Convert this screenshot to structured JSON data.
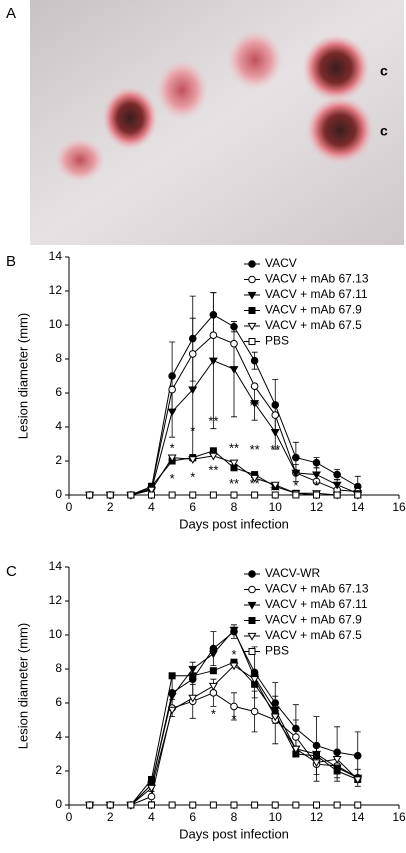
{
  "panel_labels": [
    "A",
    "B",
    "C"
  ],
  "photo_labels": [
    "c",
    "c"
  ],
  "chart_data": [
    {
      "type": "line",
      "xlabel": "Days post infection",
      "ylabel": "Lesion diameter (mm)",
      "x": [
        1,
        2,
        3,
        4,
        5,
        6,
        7,
        8,
        9,
        10,
        11,
        12,
        13,
        14
      ],
      "xlim": [
        0,
        16
      ],
      "xticks": [
        0,
        2,
        4,
        6,
        8,
        10,
        12,
        14,
        16
      ],
      "ylim": [
        0,
        14
      ],
      "yticks": [
        0,
        2,
        4,
        6,
        8,
        10,
        12,
        14
      ],
      "legend": "upper right",
      "series": [
        {
          "name": "VACV",
          "color": "#000",
          "marker": "circle",
          "filled": true,
          "values": [
            0,
            0,
            0,
            0.4,
            7.0,
            9.2,
            10.6,
            9.9,
            7.9,
            5.3,
            2.2,
            1.9,
            1.2,
            0.5
          ],
          "errors": [
            0,
            0,
            0,
            0.3,
            2.0,
            2.5,
            1.3,
            0.3,
            0.5,
            1.5,
            0.9,
            0.3,
            0.3,
            0.6
          ]
        },
        {
          "name": "VACV + mAb 67.13",
          "color": "#000",
          "marker": "circle",
          "filled": false,
          "values": [
            0,
            0,
            0,
            0.4,
            6.2,
            8.3,
            9.4,
            8.9,
            6.4,
            4.7,
            1.3,
            0.8,
            0.3,
            0.2
          ]
        },
        {
          "name": "VACV + mAb 67.11",
          "color": "#000",
          "marker": "triangle-down",
          "filled": true,
          "values": [
            0,
            0,
            0,
            0.3,
            4.9,
            6.2,
            7.9,
            7.4,
            5.4,
            3.7,
            1.3,
            1.2,
            0.6,
            0.1
          ],
          "errors": [
            0,
            0,
            0,
            0.2,
            1.5,
            4.2,
            4.0,
            2.8,
            1.0,
            1.0,
            0.5,
            0.4,
            0.3,
            0.1
          ]
        },
        {
          "name": "VACV + mAb 67.9",
          "color": "#000",
          "marker": "square",
          "filled": true,
          "values": [
            0,
            0,
            0,
            0.5,
            2.0,
            2.2,
            2.6,
            1.6,
            1.2,
            0.5,
            0.1,
            0,
            0,
            0
          ]
        },
        {
          "name": "VACV + mAb 67.5",
          "color": "#000",
          "marker": "triangle-down",
          "filled": false,
          "values": [
            0,
            0,
            0,
            0.3,
            2.2,
            2.1,
            2.3,
            1.9,
            1.0,
            0.6,
            0.1,
            0.1,
            0,
            0
          ]
        },
        {
          "name": "PBS",
          "color": "#000",
          "marker": "square",
          "filled": false,
          "values": [
            0,
            0,
            0,
            0,
            0,
            0,
            0,
            0,
            0,
            0,
            0,
            0,
            0,
            0
          ]
        }
      ],
      "annotations": [
        {
          "text": "*",
          "x": 5,
          "y": 2.7
        },
        {
          "text": "*",
          "x": 5,
          "y": 0.9
        },
        {
          "text": "*",
          "x": 6,
          "y": 3.7
        },
        {
          "text": "*",
          "x": 6,
          "y": 1.0
        },
        {
          "text": "**",
          "x": 7,
          "y": 4.3
        },
        {
          "text": "**",
          "x": 7,
          "y": 1.4
        },
        {
          "text": "**",
          "x": 8,
          "y": 2.7
        },
        {
          "text": "**",
          "x": 8,
          "y": 0.6
        },
        {
          "text": "**",
          "x": 9,
          "y": 5.2
        },
        {
          "text": "**",
          "x": 9,
          "y": 2.6
        },
        {
          "text": "**",
          "x": 9,
          "y": 0.6
        },
        {
          "text": "**",
          "x": 10,
          "y": 2.6
        },
        {
          "text": "**",
          "x": 10,
          "y": 0.2
        },
        {
          "text": "*",
          "x": 11,
          "y": 0.5
        },
        {
          "text": "*",
          "x": 12,
          "y": 0.5
        },
        {
          "text": "*",
          "x": 13,
          "y": 0.5
        }
      ]
    },
    {
      "type": "line",
      "xlabel": "Days post infection",
      "ylabel": "Lesion diameter (mm)",
      "x": [
        1,
        2,
        3,
        4,
        5,
        6,
        7,
        8,
        9,
        10,
        11,
        12,
        13,
        14
      ],
      "xlim": [
        0,
        16
      ],
      "xticks": [
        0,
        2,
        4,
        6,
        8,
        10,
        12,
        14,
        16
      ],
      "ylim": [
        0,
        14
      ],
      "yticks": [
        0,
        2,
        4,
        6,
        8,
        10,
        12,
        14
      ],
      "legend": "upper right",
      "series": [
        {
          "name": "VACV-WR",
          "color": "#000",
          "marker": "circle",
          "filled": true,
          "values": [
            0,
            0,
            0,
            1.2,
            6.6,
            7.4,
            9.2,
            10.2,
            7.8,
            6.0,
            4.5,
            3.5,
            3.1,
            2.9
          ],
          "errors": [
            0,
            0,
            0,
            0.4,
            1.0,
            1.0,
            1.0,
            0.4,
            1.5,
            1.2,
            1.4,
            1.7,
            1.5,
            1.4
          ]
        },
        {
          "name": "VACV + mAb 67.13",
          "color": "#000",
          "marker": "circle",
          "filled": false,
          "values": [
            0,
            0,
            0,
            0.5,
            5.7,
            6.1,
            6.6,
            5.8,
            5.5,
            5.0,
            4.0,
            2.4,
            2.3,
            1.6
          ],
          "errors": [
            0,
            0,
            0,
            0.3,
            0.5,
            1.0,
            0.8,
            0.8,
            1.2,
            1.4,
            1.0,
            1.0,
            0.9,
            0.5
          ]
        },
        {
          "name": "VACV + mAb 67.11",
          "color": "#000",
          "marker": "triangle-down",
          "filled": true,
          "values": [
            0,
            0,
            0,
            1.2,
            6.4,
            8.0,
            8.9,
            10.3,
            7.5,
            5.6,
            3.3,
            3.0,
            2.2,
            1.6
          ]
        },
        {
          "name": "VACV + mAb 67.9",
          "color": "#000",
          "marker": "square",
          "filled": true,
          "values": [
            0,
            0,
            0,
            1.5,
            7.6,
            7.6,
            7.9,
            8.4,
            7.1,
            5.4,
            3.0,
            2.9,
            2.0,
            1.5
          ]
        },
        {
          "name": "VACV + mAb 67.5",
          "color": "#000",
          "marker": "triangle-down",
          "filled": false,
          "values": [
            0,
            0,
            0,
            1.0,
            5.6,
            6.3,
            7.0,
            8.2,
            7.4,
            5.2,
            3.3,
            2.5,
            2.7,
            1.5
          ]
        },
        {
          "name": "PBS",
          "color": "#000",
          "marker": "square",
          "filled": false,
          "values": [
            0,
            0,
            0,
            0,
            0,
            0,
            0,
            0,
            0,
            0,
            0,
            0,
            0,
            0
          ]
        }
      ],
      "annotations": [
        {
          "text": "*",
          "x": 7,
          "y": 5.3
        },
        {
          "text": "*",
          "x": 8,
          "y": 8.8
        },
        {
          "text": "*",
          "x": 8,
          "y": 5.0
        }
      ]
    }
  ]
}
